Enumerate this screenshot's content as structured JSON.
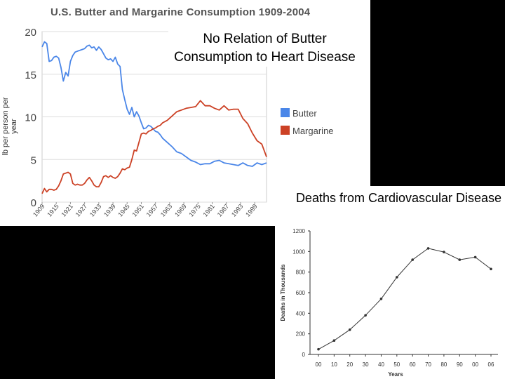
{
  "overlays": {
    "butter_claim": "No Relation of Butter Consumption to Heart Disease",
    "cvd_title": "Deaths from Cardiovascular Disease"
  },
  "chart_data": [
    {
      "type": "line",
      "title": "U.S. Butter and Margarine Consumption 1909-2004",
      "ylabel": "lb per person per year",
      "xlabel": "",
      "ylim": [
        0,
        20
      ],
      "yticks": [
        "0",
        "5",
        "10",
        "15",
        "20"
      ],
      "xtick_labels": [
        "1909",
        "1915",
        "1921",
        "1927",
        "1933",
        "1939",
        "1945",
        "1951",
        "1957",
        "1963",
        "1969",
        "1975",
        "1981",
        "1987",
        "1993",
        "1999"
      ],
      "legend": [
        "Butter",
        "Margarine"
      ],
      "colors": {
        "Butter": "#4a86e8",
        "Margarine": "#cc4125"
      },
      "series": [
        {
          "name": "Butter",
          "x": [
            1909,
            1910,
            1911,
            1912,
            1913,
            1914,
            1915,
            1916,
            1917,
            1918,
            1919,
            1920,
            1921,
            1922,
            1923,
            1924,
            1925,
            1926,
            1927,
            1928,
            1929,
            1930,
            1931,
            1932,
            1933,
            1934,
            1935,
            1936,
            1937,
            1938,
            1939,
            1940,
            1941,
            1942,
            1943,
            1944,
            1945,
            1946,
            1947,
            1948,
            1949,
            1950,
            1951,
            1952,
            1953,
            1954,
            1955,
            1956,
            1957,
            1958,
            1959,
            1960,
            1962,
            1964,
            1966,
            1968,
            1970,
            1972,
            1974,
            1976,
            1978,
            1980,
            1982,
            1984,
            1986,
            1988,
            1990,
            1992,
            1994,
            1996,
            1998,
            2000,
            2002,
            2004
          ],
          "values": [
            18.2,
            18.8,
            18.6,
            16.5,
            16.6,
            17.0,
            17.1,
            16.9,
            15.8,
            14.2,
            15.2,
            14.8,
            16.5,
            17.2,
            17.6,
            17.7,
            17.8,
            17.9,
            18.0,
            18.3,
            18.4,
            18.1,
            18.2,
            17.8,
            18.2,
            17.9,
            17.4,
            16.9,
            16.7,
            16.8,
            16.5,
            17.0,
            16.2,
            15.9,
            13.2,
            12.0,
            10.9,
            10.3,
            11.1,
            10.0,
            10.6,
            10.1,
            9.3,
            8.6,
            8.7,
            9.0,
            8.9,
            8.6,
            8.3,
            8.2,
            7.9,
            7.5,
            7.0,
            6.5,
            5.9,
            5.7,
            5.3,
            4.9,
            4.7,
            4.4,
            4.5,
            4.5,
            4.8,
            4.9,
            4.6,
            4.5,
            4.4,
            4.3,
            4.6,
            4.3,
            4.2,
            4.6,
            4.4,
            4.6
          ]
        },
        {
          "name": "Margarine",
          "x": [
            1909,
            1910,
            1911,
            1912,
            1913,
            1914,
            1915,
            1916,
            1917,
            1918,
            1919,
            1920,
            1921,
            1922,
            1923,
            1924,
            1925,
            1926,
            1927,
            1928,
            1929,
            1930,
            1931,
            1932,
            1933,
            1934,
            1935,
            1936,
            1937,
            1938,
            1939,
            1940,
            1941,
            1942,
            1943,
            1944,
            1945,
            1946,
            1947,
            1948,
            1949,
            1950,
            1951,
            1952,
            1953,
            1954,
            1955,
            1956,
            1957,
            1958,
            1959,
            1960,
            1962,
            1964,
            1966,
            1968,
            1970,
            1972,
            1974,
            1976,
            1978,
            1980,
            1982,
            1984,
            1986,
            1988,
            1990,
            1992,
            1994,
            1996,
            1998,
            2000,
            2002,
            2004
          ],
          "values": [
            1.0,
            1.6,
            1.2,
            1.5,
            1.5,
            1.4,
            1.5,
            1.9,
            2.5,
            3.3,
            3.4,
            3.5,
            3.3,
            2.2,
            2.0,
            2.1,
            2.0,
            2.0,
            2.2,
            2.6,
            2.9,
            2.5,
            2.0,
            1.8,
            1.8,
            2.3,
            3.0,
            3.1,
            2.9,
            3.1,
            2.9,
            2.8,
            3.0,
            3.4,
            3.9,
            3.8,
            4.0,
            4.1,
            5.0,
            6.1,
            6.0,
            7.0,
            8.0,
            8.1,
            8.0,
            8.3,
            8.4,
            8.6,
            8.7,
            8.9,
            9.0,
            9.3,
            9.6,
            10.1,
            10.6,
            10.8,
            11.0,
            11.1,
            11.2,
            11.9,
            11.3,
            11.3,
            11.0,
            10.8,
            11.3,
            10.8,
            10.9,
            10.9,
            9.8,
            9.2,
            8.1,
            7.2,
            6.8,
            5.3
          ]
        }
      ]
    },
    {
      "type": "line",
      "title": "Deaths from Cardiovascular Disease",
      "xlabel": "Years",
      "ylabel": "Deaths in Thousands",
      "ylim": [
        0,
        1200
      ],
      "yticks": [
        "0",
        "200",
        "400",
        "600",
        "800",
        "1000",
        "1200"
      ],
      "categories": [
        "00",
        "10",
        "20",
        "30",
        "40",
        "50",
        "60",
        "70",
        "80",
        "90",
        "00",
        "06"
      ],
      "values": [
        50,
        135,
        240,
        380,
        540,
        750,
        920,
        1030,
        995,
        920,
        945,
        830
      ]
    }
  ]
}
